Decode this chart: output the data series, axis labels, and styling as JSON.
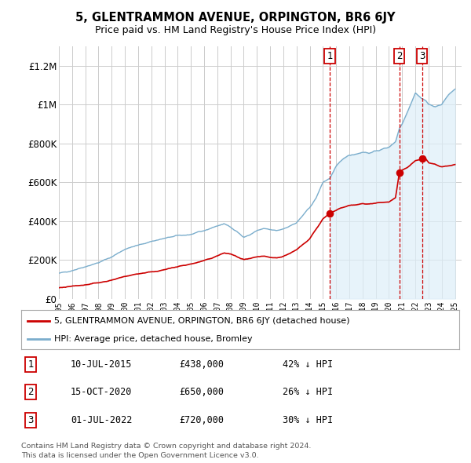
{
  "title": "5, GLENTRAMMON AVENUE, ORPINGTON, BR6 6JY",
  "subtitle": "Price paid vs. HM Land Registry's House Price Index (HPI)",
  "legend_label_red": "5, GLENTRAMMON AVENUE, ORPINGTON, BR6 6JY (detached house)",
  "legend_label_blue": "HPI: Average price, detached house, Bromley",
  "footer1": "Contains HM Land Registry data © Crown copyright and database right 2024.",
  "footer2": "This data is licensed under the Open Government Licence v3.0.",
  "transactions": [
    {
      "num": 1,
      "date": "10-JUL-2015",
      "price": "£438,000",
      "hpi": "42% ↓ HPI",
      "year": 2015.52
    },
    {
      "num": 2,
      "date": "15-OCT-2020",
      "price": "£650,000",
      "hpi": "26% ↓ HPI",
      "year": 2020.79
    },
    {
      "num": 3,
      "date": "01-JUL-2022",
      "price": "£720,000",
      "hpi": "30% ↓ HPI",
      "year": 2022.5
    }
  ],
  "transaction_values": [
    438000,
    650000,
    720000
  ],
  "xlim": [
    1995.0,
    2025.5
  ],
  "ylim": [
    0,
    1300000
  ],
  "yticks": [
    0,
    200000,
    400000,
    600000,
    800000,
    1000000,
    1200000
  ],
  "ytick_labels": [
    "£0",
    "£200K",
    "£400K",
    "£600K",
    "£800K",
    "£1M",
    "£1.2M"
  ],
  "color_red": "#cc0000",
  "color_blue": "#7aadcc",
  "color_fill": "#ddeef8",
  "color_dashed": "#cc0000",
  "bg_color": "#ffffff",
  "grid_color": "#cccccc"
}
